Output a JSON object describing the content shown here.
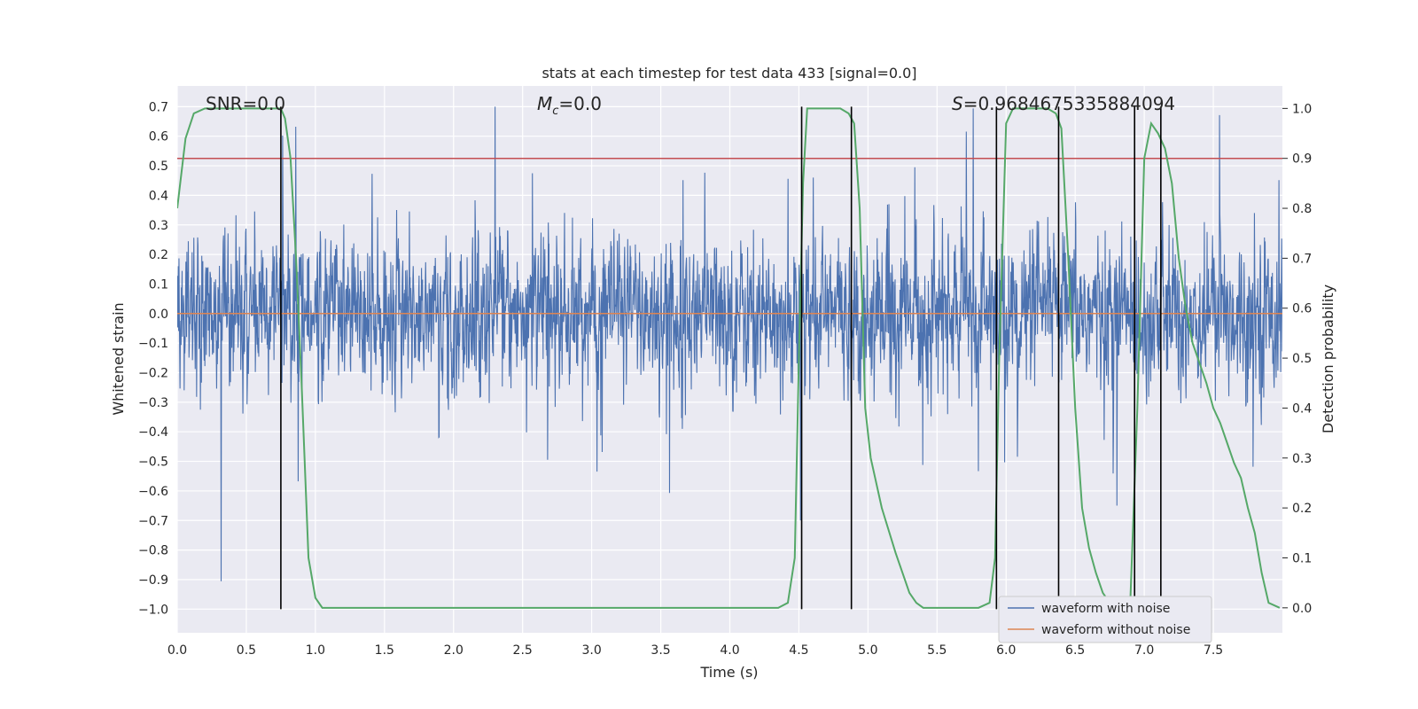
{
  "chart_data": {
    "type": "line",
    "title": "stats at each timestep for test data 433 [signal=0.0]",
    "xlabel": "Time (s)",
    "ylabel": "Whitened strain",
    "y2label": "Detection probability",
    "xlim": [
      0.0,
      8.0
    ],
    "ylim": [
      -1.08,
      0.77
    ],
    "y2lim": [
      -0.05,
      1.045
    ],
    "xticks": [
      0.0,
      0.5,
      1.0,
      1.5,
      2.0,
      2.5,
      3.0,
      3.5,
      4.0,
      4.5,
      5.0,
      5.5,
      6.0,
      6.5,
      7.0,
      7.5
    ],
    "xtick_labels": [
      "0.0",
      "0.5",
      "1.0",
      "1.5",
      "2.0",
      "2.5",
      "3.0",
      "3.5",
      "4.0",
      "4.5",
      "5.0",
      "5.5",
      "6.0",
      "6.5",
      "7.0",
      "7.5"
    ],
    "yticks": [
      0.7,
      0.6,
      0.5,
      0.4,
      0.3,
      0.2,
      0.1,
      0.0,
      -0.1,
      -0.2,
      -0.3,
      -0.4,
      -0.5,
      -0.6,
      -0.7,
      -0.8,
      -0.9,
      -1.0
    ],
    "ytick_labels": [
      "0.7",
      "0.6",
      "0.5",
      "0.4",
      "0.3",
      "0.2",
      "0.1",
      "0.0",
      "−0.1",
      "−0.2",
      "−0.3",
      "−0.4",
      "−0.5",
      "−0.6",
      "−0.7",
      "−0.8",
      "−0.9",
      "−1.0"
    ],
    "y2ticks": [
      1.0,
      0.9,
      0.8,
      0.7,
      0.6,
      0.5,
      0.4,
      0.3,
      0.2,
      0.1,
      0.0
    ],
    "y2tick_labels": [
      "1.0",
      "0.9",
      "0.8",
      "0.7",
      "0.6",
      "0.5",
      "0.4",
      "0.3",
      "0.2",
      "0.1",
      "0.0"
    ],
    "grid": true,
    "legend_placement": "lower-right",
    "series": [
      {
        "name": "waveform with noise",
        "color": "#4c72b0",
        "kind": "noise",
        "typical_amplitude": 0.2,
        "max_abs": 1.0
      },
      {
        "name": "waveform without noise",
        "color": "#dd8452",
        "kind": "flat",
        "value": 0.0
      }
    ],
    "threshold": {
      "axis": "right",
      "value": 0.9,
      "color": "#c44e52"
    },
    "detection_probability": {
      "axis": "right",
      "color": "#55a868",
      "x": [
        0.0,
        0.06,
        0.12,
        0.2,
        0.3,
        0.4,
        0.5,
        0.6,
        0.72,
        0.75,
        0.78,
        0.82,
        0.86,
        0.9,
        0.95,
        1.0,
        1.05,
        1.1,
        1.5,
        2.0,
        3.0,
        4.0,
        4.35,
        4.42,
        4.47,
        4.5,
        4.53,
        4.56,
        4.6,
        4.8,
        4.86,
        4.9,
        4.94,
        4.98,
        5.02,
        5.1,
        5.2,
        5.3,
        5.35,
        5.4,
        5.5,
        5.6,
        5.7,
        5.8,
        5.88,
        5.92,
        5.95,
        6.0,
        6.05,
        6.1,
        6.3,
        6.36,
        6.4,
        6.45,
        6.5,
        6.55,
        6.6,
        6.65,
        6.7,
        6.75,
        6.8,
        6.85,
        6.9,
        6.95,
        7.0,
        7.05,
        7.1,
        7.15,
        7.2,
        7.25,
        7.3,
        7.35,
        7.4,
        7.45,
        7.5,
        7.55,
        7.6,
        7.65,
        7.7,
        7.75,
        7.8,
        7.85,
        7.9,
        7.98
      ],
      "y": [
        0.8,
        0.94,
        0.99,
        1.0,
        1.0,
        1.0,
        1.0,
        1.0,
        1.0,
        1.0,
        0.98,
        0.9,
        0.7,
        0.45,
        0.1,
        0.02,
        0.0,
        0.0,
        0.0,
        0.0,
        0.0,
        0.0,
        0.0,
        0.01,
        0.1,
        0.5,
        0.85,
        1.0,
        1.0,
        1.0,
        0.99,
        0.97,
        0.8,
        0.4,
        0.3,
        0.2,
        0.11,
        0.03,
        0.01,
        0.0,
        0.0,
        0.0,
        0.0,
        0.0,
        0.01,
        0.1,
        0.5,
        0.97,
        1.0,
        1.0,
        1.0,
        0.99,
        0.96,
        0.7,
        0.4,
        0.2,
        0.12,
        0.07,
        0.03,
        0.01,
        0.0,
        0.0,
        0.02,
        0.4,
        0.9,
        0.97,
        0.95,
        0.92,
        0.85,
        0.7,
        0.6,
        0.53,
        0.49,
        0.45,
        0.4,
        0.37,
        0.33,
        0.29,
        0.26,
        0.2,
        0.15,
        0.07,
        0.01,
        0.0
      ]
    },
    "vertical_lines": {
      "color": "#000000",
      "x": [
        0.75,
        4.52,
        4.88,
        5.93,
        6.38,
        6.93,
        7.12
      ],
      "y_top": 0.7,
      "y_bottom": -1.0
    },
    "annotations": [
      {
        "id": "snr",
        "text": "SNR=0.0"
      },
      {
        "id": "mc",
        "prefix": "M",
        "subscript": "c",
        "text": "=0.0"
      },
      {
        "id": "s",
        "prefix": "S",
        "text": "=0.9684675335884094"
      }
    ]
  },
  "colors": {
    "plot_background": "#eaeaf2",
    "grid": "#ffffff",
    "legend_background": "#eaeaf2",
    "legend_border": "#cccccc"
  }
}
